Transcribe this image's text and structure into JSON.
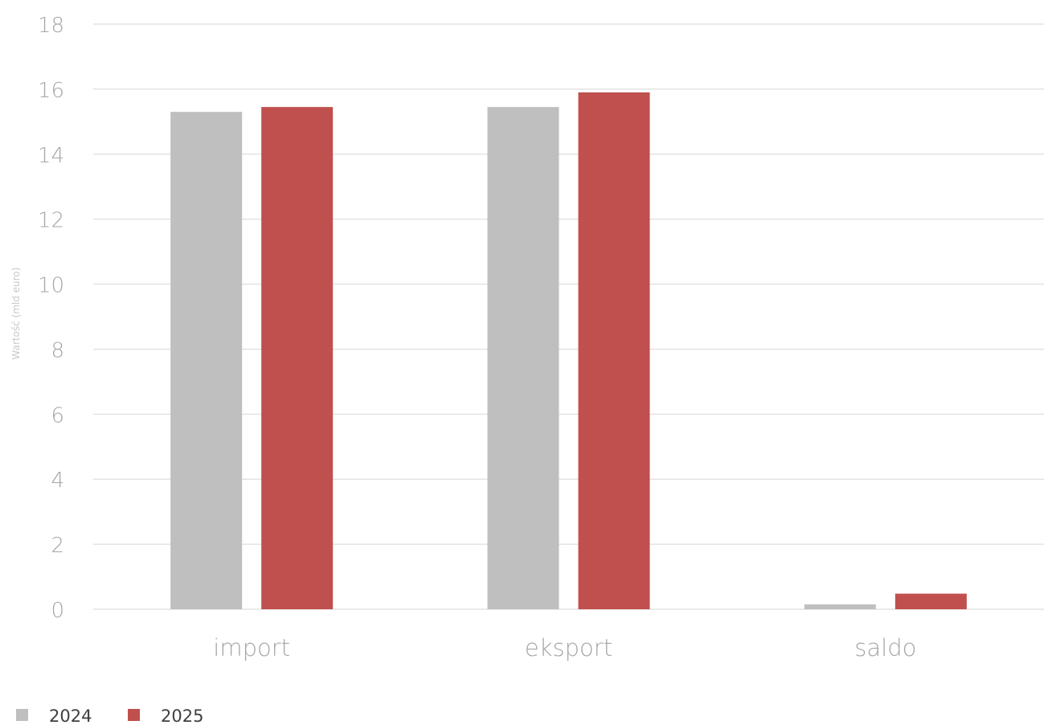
{
  "chart_data": {
    "type": "bar",
    "categories": [
      "import",
      "eksport",
      "saldo"
    ],
    "series": [
      {
        "name": "2024",
        "color": "#bfbfbf",
        "values": [
          15.3,
          15.45,
          0.15
        ]
      },
      {
        "name": "2025",
        "color": "#c0504d",
        "values": [
          15.45,
          15.9,
          0.48
        ]
      }
    ],
    "xlabel": "",
    "ylabel": "Wartość (mld euro)",
    "ylim": [
      0,
      18
    ],
    "yticks": [
      0,
      2,
      4,
      6,
      8,
      10,
      12,
      14,
      16,
      18
    ],
    "grid": true,
    "legend_position": "bottom-left"
  }
}
